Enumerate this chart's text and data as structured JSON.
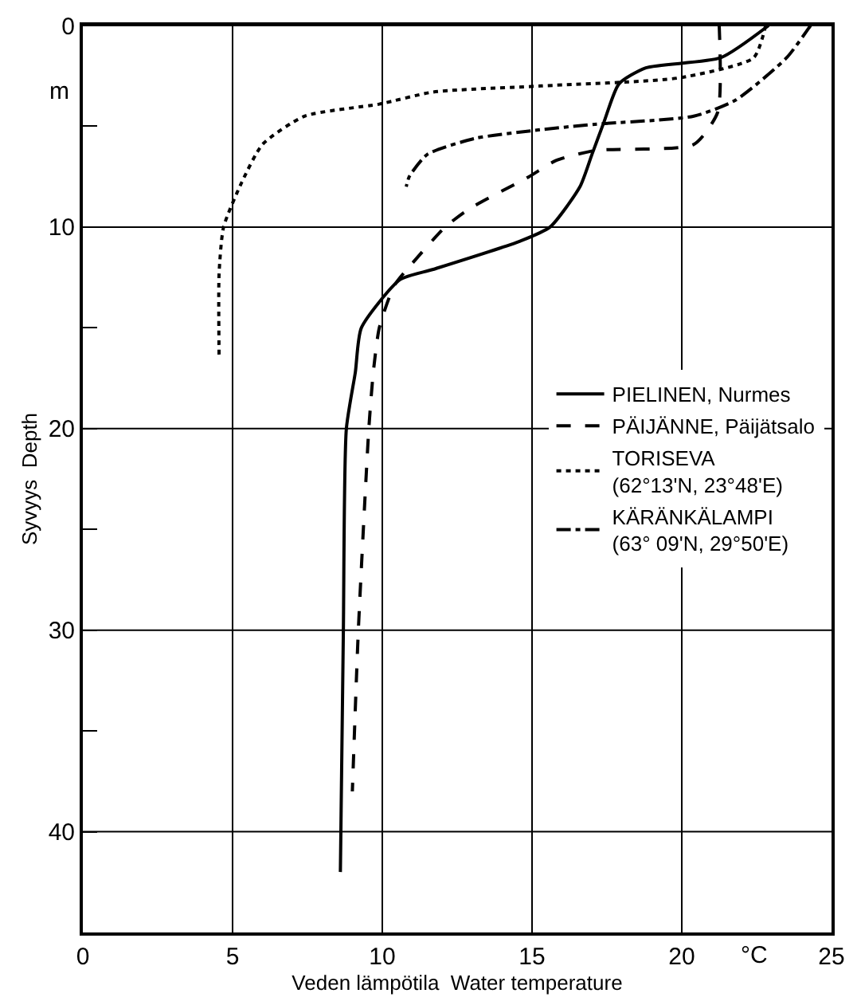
{
  "chart_data": {
    "type": "line",
    "xlabel": "Veden lämpötila  Water temperature",
    "ylabel": "Syvyys  Depth",
    "annotations": [
      "m",
      "°C"
    ],
    "xlim": [
      0,
      25
    ],
    "xticks": [
      0,
      5,
      10,
      15,
      20,
      25
    ],
    "ylim": [
      45,
      0
    ],
    "yticks": [
      0,
      {
        "value": 5,
        "label": null
      },
      10,
      {
        "value": 15,
        "label": null
      },
      20,
      {
        "value": 25,
        "label": null
      },
      30,
      {
        "value": 35,
        "label": null
      },
      40
    ],
    "grid": true,
    "legend": "right",
    "series": [
      {
        "name": "PIELINEN, Nurmes",
        "color": "#000000",
        "line_style": "solid",
        "x": [
          22.9,
          21.3,
          18.8,
          17.9,
          17.4,
          17.0,
          16.6,
          15.6,
          14.6,
          11.7,
          10.6,
          9.3,
          9.1,
          8.8,
          8.7,
          8.6
        ],
        "values": [
          0,
          1.6,
          2.1,
          2.9,
          4.8,
          6.4,
          8,
          10,
          10.7,
          12.1,
          12.6,
          15,
          17.2,
          20,
          30,
          42
        ]
      },
      {
        "name": "PÄIJÄNNE, Päijätsalo",
        "color": "#000000",
        "line_style": "dashed",
        "x": [
          21.25,
          21.2,
          20.4,
          17.1,
          15.8,
          14.9,
          12.9,
          12.1,
          11.0,
          10.4,
          9.9,
          9.7,
          9.55,
          9.2,
          9.0
        ],
        "values": [
          0,
          4.3,
          5.9,
          6.2,
          6.7,
          7.5,
          9.1,
          10,
          11.8,
          12.9,
          15,
          17.2,
          20,
          30,
          38
        ]
      },
      {
        "name": "TORISEVA\n(62°13'N, 23°48'E)",
        "color": "#000000",
        "line_style": "dotted",
        "x": [
          22.8,
          22.4,
          19.9,
          15.3,
          11.7,
          9.9,
          7.4,
          6.0,
          5.3,
          4.7,
          4.55,
          4.55
        ],
        "values": [
          0,
          1.6,
          2.6,
          3.0,
          3.3,
          3.9,
          4.5,
          5.9,
          7.8,
          10,
          12.3,
          16.5
        ]
      },
      {
        "name": "KÄRÄNKÄLAMPI\n(63° 09'N, 29°50'E)",
        "color": "#000000",
        "line_style": "dashdot",
        "x": [
          24.3,
          23.5,
          21.8,
          20.4,
          17.1,
          15.1,
          13.1,
          11.5,
          10.9,
          10.8
        ],
        "values": [
          0,
          1.6,
          3.7,
          4.5,
          4.9,
          5.2,
          5.6,
          6.4,
          7.5,
          8.0
        ]
      }
    ]
  }
}
